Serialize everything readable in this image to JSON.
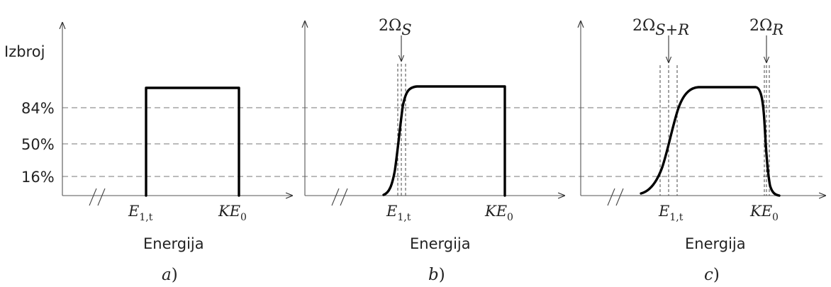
{
  "y_axis_label": "Izbroj",
  "levels": [
    "84%",
    "50%",
    "16%"
  ],
  "x_axis_label": "Energija",
  "marker_labels": {
    "e1t": {
      "main": "E",
      "sub": "1,t"
    },
    "ke0": {
      "main": "KE",
      "sub": "0"
    }
  },
  "panels": [
    {
      "caption": "a",
      "annotations": []
    },
    {
      "caption": "b",
      "annotations": [
        {
          "prefix": "2Ω",
          "sub": "S"
        }
      ]
    },
    {
      "caption": "c",
      "annotations": [
        {
          "prefix": "2Ω",
          "sub": "S+R"
        },
        {
          "prefix": "2Ω",
          "sub": "R"
        }
      ]
    }
  ]
}
